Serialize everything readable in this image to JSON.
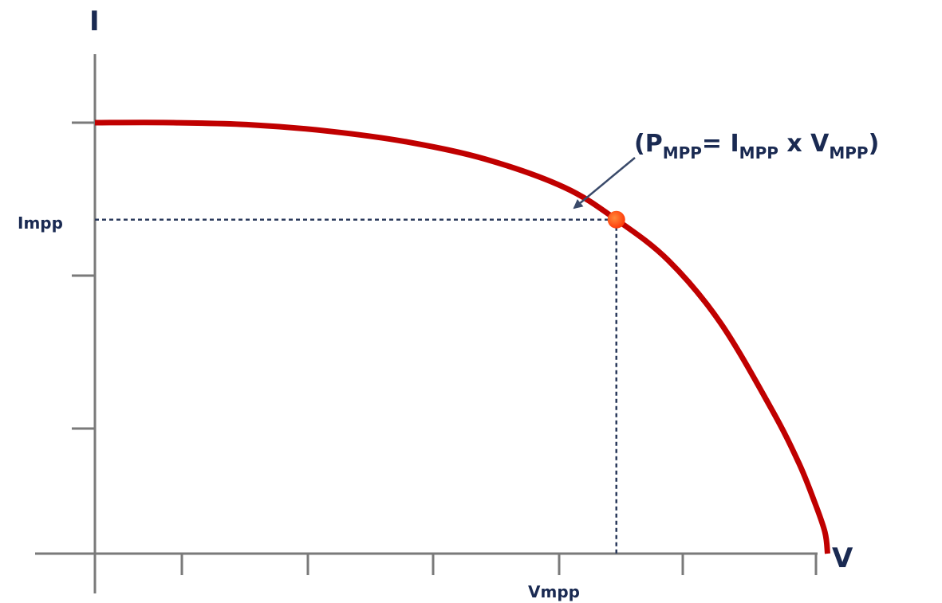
{
  "colors": {
    "axis": "#7a7a7a",
    "text": "#1a2a52",
    "curve": "#c00000",
    "guide": "#2b3a5c",
    "point": "#ff3b0a",
    "arrow": "#3a4a6a"
  },
  "chart_data": {
    "type": "line",
    "title": "",
    "xlabel": "V",
    "ylabel": "I",
    "xlim": [
      0,
      1.47
    ],
    "ylim": [
      0,
      1.0
    ],
    "grid": false,
    "tick_labels": {
      "x": "Vmpp",
      "y": "Impp"
    },
    "series": [
      {
        "points": [
          [
            0,
            1.0
          ],
          [
            0.15,
            1.0
          ],
          [
            0.3,
            0.995
          ],
          [
            0.45,
            0.98
          ],
          [
            0.6,
            0.955
          ],
          [
            0.75,
            0.915
          ],
          [
            0.9,
            0.85
          ],
          [
            1.0,
            0.775
          ],
          [
            1.1,
            0.68
          ],
          [
            1.2,
            0.535
          ],
          [
            1.3,
            0.33
          ],
          [
            1.35,
            0.21
          ],
          [
            1.38,
            0.12
          ],
          [
            1.4,
            0.05
          ],
          [
            1.405,
            0.0
          ]
        ]
      }
    ],
    "mpp": {
      "v": 1.0,
      "i": 0.775
    },
    "annotation": {
      "open": "(P",
      "p_sub": "MPP",
      "eq": "= I",
      "i_sub": "MPP",
      "times": " x V",
      "v_sub": "MPP",
      "close": ")"
    }
  }
}
